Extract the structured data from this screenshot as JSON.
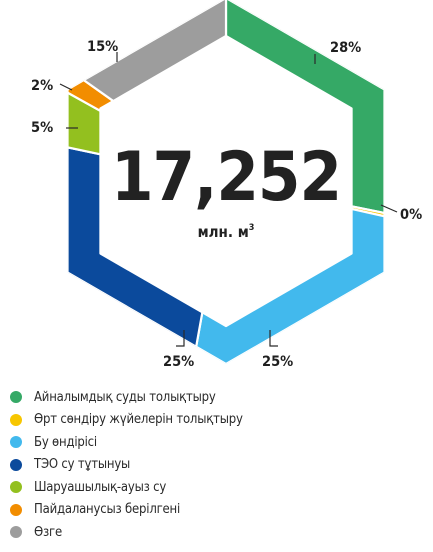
{
  "chart_data": {
    "type": "pie",
    "shape": "hexagon-donut",
    "total": {
      "value": "17,252",
      "unit_text": "млн. м",
      "unit_sup": "3"
    },
    "slices": [
      {
        "name": "Айналымдық суды толықтыру",
        "value": 28,
        "label": "28%",
        "color": "#35a966"
      },
      {
        "name": "Өрт сөндіру жүйелерін толықтыру",
        "value": 0.3,
        "label": "0%",
        "color": "#f7c600"
      },
      {
        "name": "Бу өндірісі",
        "value": 25,
        "label": "25%",
        "color": "#42b9ed"
      },
      {
        "name": "ТЭО су тұтынуы",
        "value": 25,
        "label": "25%",
        "color": "#0b4a9c"
      },
      {
        "name": "Шаруашылық-ауыз су",
        "value": 5,
        "label": "5%",
        "color": "#93c01f"
      },
      {
        "name": "Пайдаланусыз берілгені",
        "value": 2,
        "label": "2%",
        "color": "#f28d00"
      },
      {
        "name": "Өзге",
        "value": 15,
        "label": "15%",
        "color": "#9d9d9d"
      }
    ],
    "legend_position": "bottom-left"
  }
}
